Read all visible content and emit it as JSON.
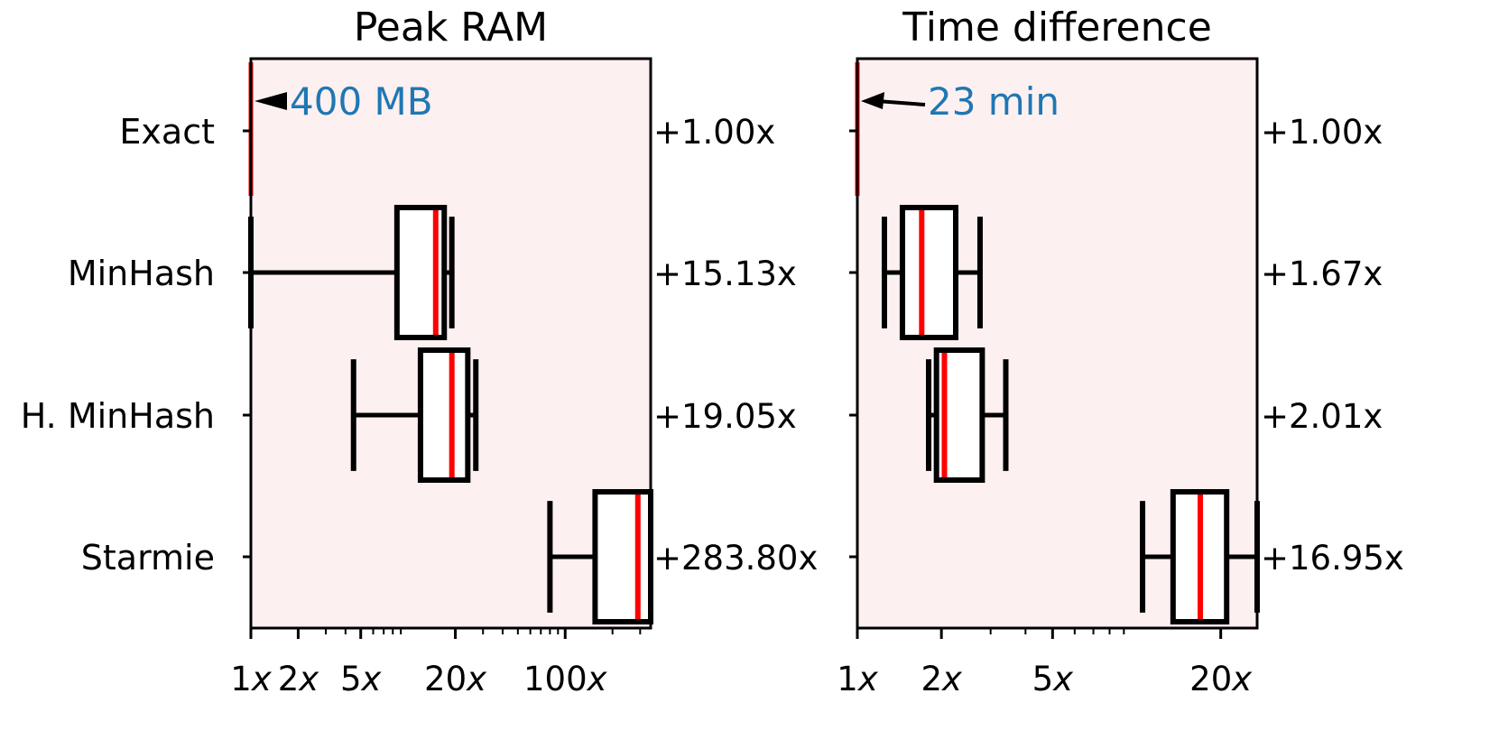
{
  "chart_data": [
    {
      "type": "box",
      "title": "Peak RAM",
      "scale": "log",
      "xlim": [
        1,
        350
      ],
      "background_color": "#fdf0f0",
      "median_color": "#ff0000",
      "annotation_color": "#1f77b4",
      "annotation": {
        "text": "400 MB",
        "y_category": "Exact"
      },
      "xticks": [
        {
          "value": 1,
          "label": "1x"
        },
        {
          "value": 2,
          "label": "2x"
        },
        {
          "value": 5,
          "label": "5x"
        },
        {
          "value": 20,
          "label": "20x"
        },
        {
          "value": 100,
          "label": "100x"
        }
      ],
      "categories": [
        "Exact",
        "MinHash",
        "H. MinHash",
        "Starmie"
      ],
      "boxes": [
        {
          "category": "Exact",
          "whislo": 1.0,
          "q1": 1.0,
          "med": 1.0,
          "q3": 1.0,
          "whishi": 1.0,
          "factor": "+1.00x"
        },
        {
          "category": "MinHash",
          "whislo": 1.0,
          "q1": 8.5,
          "med": 15.0,
          "q3": 17.0,
          "whishi": 19.0,
          "factor": "+15.13x"
        },
        {
          "category": "H. MinHash",
          "whislo": 4.5,
          "q1": 12.0,
          "med": 19.0,
          "q3": 24.0,
          "whishi": 27.0,
          "factor": "+19.05x"
        },
        {
          "category": "Starmie",
          "whislo": 80.0,
          "q1": 155.0,
          "med": 290.0,
          "q3": 350.0,
          "whishi": 350.0,
          "factor": "+283.80x"
        }
      ]
    },
    {
      "type": "box",
      "title": "Time difference",
      "scale": "log",
      "xlim": [
        1,
        27
      ],
      "background_color": "#fdf0f0",
      "median_color": "#ff0000",
      "annotation_color": "#1f77b4",
      "annotation": {
        "text": "23 min",
        "y_category": "Exact"
      },
      "xticks": [
        {
          "value": 1,
          "label": "1x"
        },
        {
          "value": 2,
          "label": "2x"
        },
        {
          "value": 5,
          "label": "5x"
        },
        {
          "value": 20,
          "label": "20x"
        }
      ],
      "categories": [
        "Exact",
        "MinHash",
        "H. MinHash",
        "Starmie"
      ],
      "boxes": [
        {
          "category": "Exact",
          "whislo": 1.0,
          "q1": 1.0,
          "med": 1.0,
          "q3": 1.0,
          "whishi": 1.0,
          "factor": "+1.00x"
        },
        {
          "category": "MinHash",
          "whislo": 1.25,
          "q1": 1.45,
          "med": 1.7,
          "q3": 2.25,
          "whishi": 2.75,
          "factor": "+1.67x"
        },
        {
          "category": "H. MinHash",
          "whislo": 1.8,
          "q1": 1.92,
          "med": 2.05,
          "q3": 2.8,
          "whishi": 3.4,
          "factor": "+2.01x"
        },
        {
          "category": "Starmie",
          "whislo": 10.5,
          "q1": 13.5,
          "med": 16.9,
          "q3": 21.0,
          "whishi": 27.0,
          "factor": "+16.95x"
        }
      ]
    }
  ]
}
